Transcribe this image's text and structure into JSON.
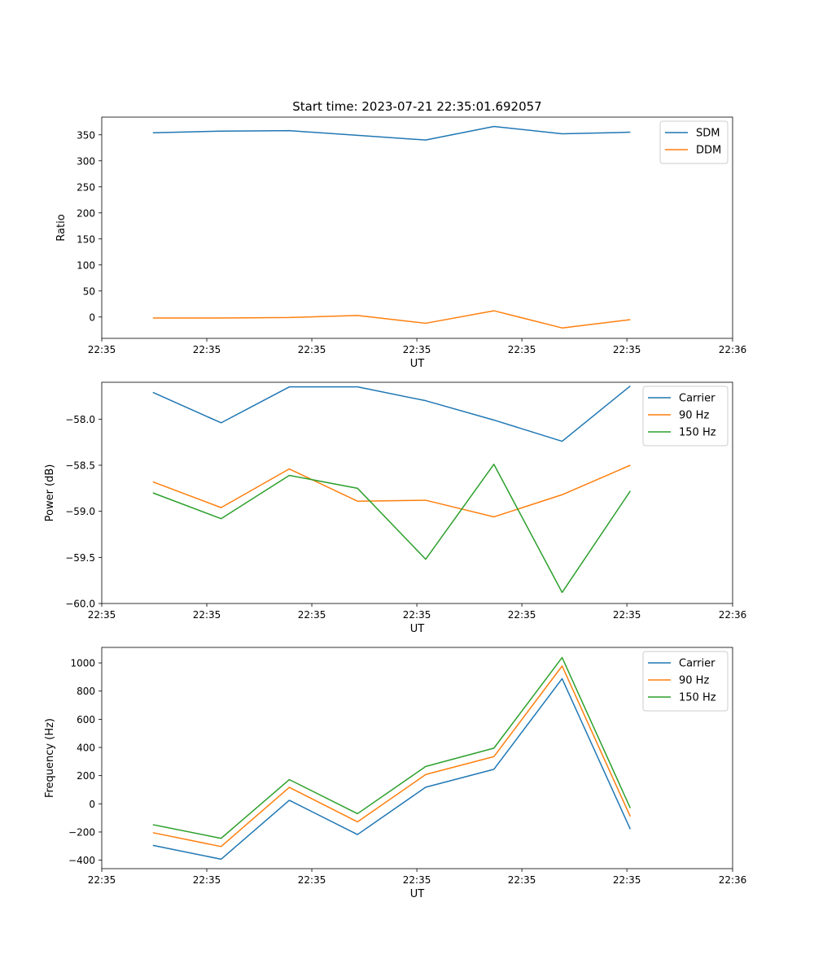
{
  "figure_title": "Start time: 2023-07-21 22:35:01.692057",
  "colors": {
    "blue": "#1f77b4",
    "orange": "#ff7f0e",
    "green": "#2ca02c"
  },
  "chart_data": [
    {
      "type": "line",
      "xlabel": "UT",
      "ylabel": "Ratio",
      "x_tick_labels": [
        "22:35",
        "22:35",
        "22:35",
        "22:35",
        "22:35",
        "22:35",
        "22:36"
      ],
      "xlim": [
        -0.75,
        8.5
      ],
      "x": [
        0,
        1,
        2,
        3,
        4,
        5,
        6,
        7
      ],
      "ylim": [
        -41,
        384
      ],
      "y_ticks": [
        0,
        50,
        100,
        150,
        200,
        250,
        300,
        350
      ],
      "legend_position": "top-right",
      "series": [
        {
          "name": "SDM",
          "color": "#1f77b4",
          "values": [
            354,
            357,
            358,
            349,
            340,
            366,
            352,
            355
          ]
        },
        {
          "name": "DDM",
          "color": "#ff7f0e",
          "values": [
            -2,
            -2,
            -1,
            3,
            -12,
            12,
            -21,
            -5
          ]
        }
      ]
    },
    {
      "type": "line",
      "xlabel": "UT",
      "ylabel": "Power (dB)",
      "x_tick_labels": [
        "22:35",
        "22:35",
        "22:35",
        "22:35",
        "22:35",
        "22:35",
        "22:36"
      ],
      "xlim": [
        -0.75,
        8.5
      ],
      "x": [
        0,
        1,
        2,
        3,
        4,
        5,
        6,
        7
      ],
      "ylim": [
        -60.0,
        -57.6
      ],
      "y_ticks": [
        -60.0,
        -59.5,
        -59.0,
        -58.5,
        -58.0
      ],
      "y_tick_labels": [
        "−60.0",
        "−59.5",
        "−59.0",
        "−58.5",
        "−58.0"
      ],
      "legend_position": "top-right",
      "series": [
        {
          "name": "Carrier",
          "color": "#1f77b4",
          "values": [
            -57.71,
            -58.04,
            -57.65,
            -57.65,
            -57.8,
            -58.01,
            -58.24,
            -57.64
          ]
        },
        {
          "name": "90 Hz",
          "color": "#ff7f0e",
          "values": [
            -58.68,
            -58.96,
            -58.54,
            -58.89,
            -58.88,
            -59.06,
            -58.82,
            -58.5
          ]
        },
        {
          "name": "150 Hz",
          "color": "#2ca02c",
          "values": [
            -58.8,
            -59.08,
            -58.61,
            -58.75,
            -59.52,
            -58.49,
            -59.88,
            -58.78
          ]
        }
      ]
    },
    {
      "type": "line",
      "xlabel": "UT",
      "ylabel": "Frequency (Hz)",
      "x_tick_labels": [
        "22:35",
        "22:35",
        "22:35",
        "22:35",
        "22:35",
        "22:35",
        "22:36"
      ],
      "xlim": [
        -0.75,
        8.5
      ],
      "x": [
        0,
        1,
        2,
        3,
        4,
        5,
        6,
        7
      ],
      "ylim": [
        -460,
        1110
      ],
      "y_ticks": [
        -400,
        -200,
        0,
        200,
        400,
        600,
        800,
        1000
      ],
      "y_tick_labels": [
        "−400",
        "−200",
        "0",
        "200",
        "400",
        "600",
        "800",
        "1000"
      ],
      "legend_position": "top-right",
      "series": [
        {
          "name": "Carrier",
          "color": "#1f77b4",
          "values": [
            -295,
            -393,
            25,
            -218,
            118,
            245,
            888,
            -180
          ]
        },
        {
          "name": "90 Hz",
          "color": "#ff7f0e",
          "values": [
            -205,
            -303,
            117,
            -128,
            208,
            335,
            978,
            -90
          ]
        },
        {
          "name": "150 Hz",
          "color": "#2ca02c",
          "values": [
            -148,
            -245,
            172,
            -70,
            265,
            395,
            1038,
            -30
          ]
        }
      ]
    }
  ]
}
